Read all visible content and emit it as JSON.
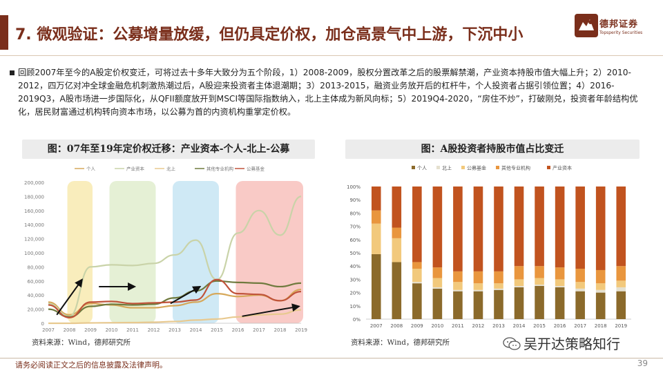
{
  "header": {
    "title": "7. 微观验证：公募增量放缓，但仍具定价权，加仓高景气中上游，下沉中小",
    "logo_cn": "德邦证券",
    "logo_en": "Topsperity Securities"
  },
  "body": {
    "paragraph": "回顾2007年至今的A股定价权变迁，可将过去十多年大致分为五个阶段，1）2008-2009，股权分置改革之后的股票解禁潮，产业资本持股市值大幅上升；2）2010-2012，四万亿对冲全球金融危机刺激热潮过后，A股迎来投资者主体退潮期；3）2013-2015，融资业务放开后的杠杆牛，个人投资者占据引领位置；4）2016-2019Q3，A股市场进一步国际化，从QFII额度放开到MSCI等国际指数纳入，北上主体成为新风向标；5）2019Q4-2020，“房住不炒”，打破刚兑，投资者年龄结构优化，居民财富通过机构转向资本市场，以公募为首的内资机构重掌定价权。"
  },
  "charts": {
    "left_title": "图：07年至19年定价权迁移：产业资本-个人-北上-公募",
    "left_source": "资料来源：Wind，德邦研究所",
    "right_title": "图：A股投资者持股市值占比变迁",
    "right_source": "资料来源：Wind，德邦研究所"
  },
  "chart_data": [
    {
      "type": "line",
      "title": "图：07年至19年定价权迁移：产业资本-个人-北上-公募",
      "x": [
        2007,
        2008,
        2009,
        2010,
        2011,
        2012,
        2013,
        2014,
        2015,
        2016,
        2017,
        2018,
        2019
      ],
      "ylim": [
        0,
        200000
      ],
      "yticks": [
        0,
        20000,
        40000,
        60000,
        80000,
        100000,
        120000,
        140000,
        160000,
        180000,
        200000
      ],
      "series": [
        {
          "name": "个人",
          "color": "#d6a85a",
          "values": [
            30000,
            12000,
            28000,
            26000,
            22000,
            22000,
            25000,
            30000,
            42000,
            38000,
            40000,
            32000,
            48000
          ]
        },
        {
          "name": "产业资本",
          "color": "#c9d3a8",
          "values": [
            28000,
            10000,
            80000,
            83000,
            82000,
            85000,
            97000,
            118000,
            62000,
            128000,
            160000,
            125000,
            180000
          ]
        },
        {
          "name": "北上",
          "color": "#e8c98f",
          "values": [
            0,
            0,
            500,
            800,
            1000,
            1500,
            2500,
            4500,
            6000,
            9000,
            12000,
            13000,
            19000
          ]
        },
        {
          "name": "其他专业机构",
          "color": "#6f7a3e",
          "values": [
            20000,
            9000,
            24000,
            27000,
            26000,
            27000,
            36000,
            46000,
            60000,
            58000,
            57000,
            52000,
            57000
          ]
        },
        {
          "name": "公募基金",
          "color": "#c0533a",
          "values": [
            26000,
            8000,
            30000,
            31000,
            28000,
            29000,
            30000,
            33000,
            62000,
            42000,
            41000,
            32000,
            45000
          ]
        }
      ],
      "highlight_bands": [
        {
          "from": 2008,
          "to": 2009,
          "color": "#f7e7a6"
        },
        {
          "from": 2010,
          "to": 2012,
          "color": "#dcebc7"
        },
        {
          "from": 2013,
          "to": 2015,
          "color": "#bfe1f2"
        },
        {
          "from": 2016,
          "to": 2019,
          "color": "#f7b8b3"
        }
      ]
    },
    {
      "type": "bar",
      "stacked": true,
      "title": "图：A股投资者持股市值占比变迁",
      "categories": [
        "2007",
        "2008",
        "2009",
        "2010",
        "2011",
        "2012",
        "2013",
        "2014",
        "2015",
        "2016",
        "2017",
        "2018",
        "2019"
      ],
      "ylim": [
        0,
        100
      ],
      "yticks_label": [
        "0%",
        "10%",
        "20%",
        "30%",
        "40%",
        "50%",
        "60%",
        "70%",
        "80%",
        "90%",
        "100%"
      ],
      "series": [
        {
          "name": "个人",
          "color": "#8b6a2b",
          "values": [
            49,
            43,
            27,
            23,
            21,
            21,
            22,
            24,
            25,
            24,
            21,
            20,
            21
          ]
        },
        {
          "name": "北上",
          "color": "#e5e0cf",
          "values": [
            0,
            0,
            1,
            1,
            1,
            1,
            1,
            1,
            1,
            1,
            2,
            2,
            3
          ]
        },
        {
          "name": "公募基金",
          "color": "#f2c97c",
          "values": [
            23,
            18,
            10,
            7,
            6,
            5,
            4,
            5,
            5,
            5,
            5,
            5,
            5
          ]
        },
        {
          "name": "其他专业机构",
          "color": "#e9963e",
          "values": [
            10,
            8,
            5,
            8,
            8,
            9,
            9,
            10,
            9,
            9,
            10,
            10,
            11
          ]
        },
        {
          "name": "产业资本",
          "color": "#c1531f",
          "values": [
            18,
            31,
            57,
            61,
            64,
            64,
            64,
            60,
            60,
            61,
            62,
            63,
            60
          ]
        }
      ]
    }
  ],
  "footer": {
    "disclaimer": "请务必阅读正文之后的信息披露及法律声明。",
    "page": "39",
    "wechat": "吴开达策略知行"
  }
}
